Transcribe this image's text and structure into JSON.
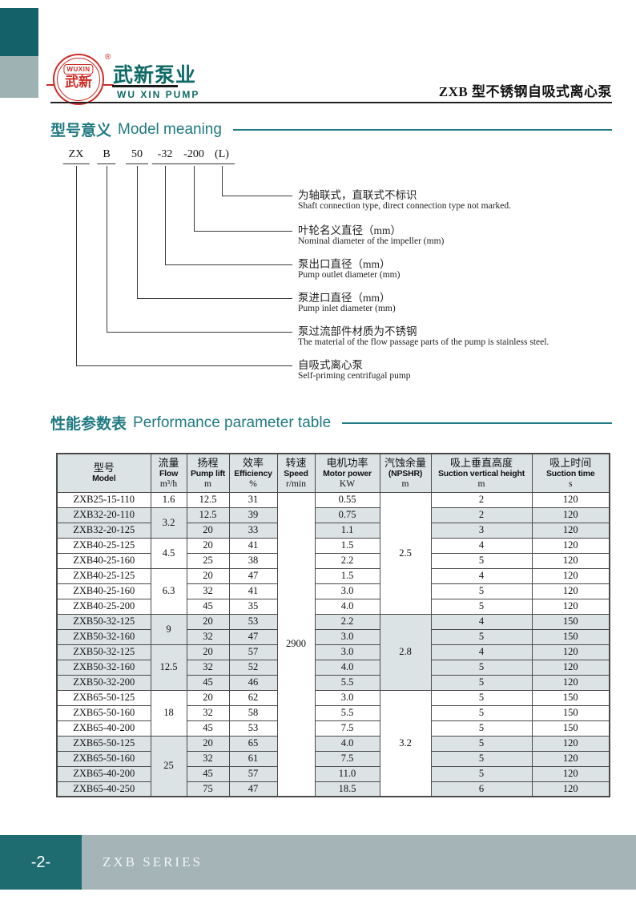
{
  "colors": {
    "accent_teal": "#1f7a82",
    "dark_teal_box": "#14616a",
    "footer_teal": "#1e6b70",
    "footer_band": "#a4b4b7",
    "light_teal_box": "#9eb1b3",
    "logo_red": "#d02c25",
    "company_teal": "#0d6a66",
    "table_stripe": "#dce3e5",
    "table_border": "#4a4a4a"
  },
  "header": {
    "logo": {
      "badge_en": "WUXIN",
      "badge_cn": "武新",
      "registered_mark": "®",
      "company_cn": "武新泵业",
      "company_en": "WU XIN PUMP"
    },
    "doc_title": "ZXB 型不锈钢自吸式离心泵"
  },
  "model_meaning": {
    "title_cn": "型号意义",
    "title_en": "Model meaning",
    "model_parts": [
      "ZX",
      "B",
      "50",
      "-32",
      "-200",
      "(L)"
    ],
    "annotations": [
      {
        "cn": "为轴联式，直联式不标识",
        "en": "Shaft connection type, direct connection type not marked."
      },
      {
        "cn": "叶轮名义直径（mm）",
        "en": "Nominal diameter of the impeller (mm)"
      },
      {
        "cn": "泵出口直径（mm）",
        "en": "Pump outlet diameter (mm)"
      },
      {
        "cn": "泵进口直径（mm）",
        "en": "Pump inlet diameter (mm)"
      },
      {
        "cn": "泵过流部件材质为不锈钢",
        "en": "The material of the flow passage parts of the pump is stainless steel."
      },
      {
        "cn": "自吸式离心泵",
        "en": "Self-priming centrifugal pump"
      }
    ]
  },
  "performance": {
    "title_cn": "性能参数表",
    "title_en": "Performance parameter table",
    "table": {
      "headers": [
        {
          "cn": "型号",
          "en": "Model",
          "unit": ""
        },
        {
          "cn": "流量",
          "en": "Flow",
          "unit": "m³/h"
        },
        {
          "cn": "扬程",
          "en": "Pump lift",
          "unit": "m"
        },
        {
          "cn": "效率",
          "en": "Efficiency",
          "unit": "%"
        },
        {
          "cn": "转速",
          "en": "Speed",
          "unit": "r/min"
        },
        {
          "cn": "电机功率",
          "en": "Motor power",
          "unit": "KW"
        },
        {
          "cn": "汽蚀余量",
          "en": "(NPSHR)",
          "unit": "m"
        },
        {
          "cn": "吸上垂直高度",
          "en": "Suction vertical height",
          "unit": "m"
        },
        {
          "cn": "吸上时间",
          "en": "Suction time",
          "unit": "s"
        }
      ],
      "speed": {
        "value": "2900",
        "span": 20
      },
      "flow_groups": [
        {
          "value": "1.6",
          "span": 1,
          "shaded": false
        },
        {
          "value": "3.2",
          "span": 2,
          "shaded": true
        },
        {
          "value": "4.5",
          "span": 2,
          "shaded": false
        },
        {
          "value": "6.3",
          "span": 3,
          "shaded": false
        },
        {
          "value": "9",
          "span": 2,
          "shaded": true
        },
        {
          "value": "12.5",
          "span": 3,
          "shaded": true
        },
        {
          "value": "18",
          "span": 3,
          "shaded": false
        },
        {
          "value": "25",
          "span": 4,
          "shaded": true
        }
      ],
      "npshr_groups": [
        {
          "value": "2.5",
          "span": 8,
          "shaded": false
        },
        {
          "value": "2.8",
          "span": 5,
          "shaded": true
        },
        {
          "value": "3.2",
          "span": 7,
          "shaded": false
        }
      ],
      "rows": [
        {
          "model": "ZXB25-15-110",
          "lift": "12.5",
          "eff": "31",
          "power": "0.55",
          "height": "2",
          "time": "120",
          "shaded": false
        },
        {
          "model": "ZXB32-20-110",
          "lift": "12.5",
          "eff": "39",
          "power": "0.75",
          "height": "2",
          "time": "120",
          "shaded": true
        },
        {
          "model": "ZXB32-20-125",
          "lift": "20",
          "eff": "33",
          "power": "1.1",
          "height": "3",
          "time": "120",
          "shaded": true
        },
        {
          "model": "ZXB40-25-125",
          "lift": "20",
          "eff": "41",
          "power": "1.5",
          "height": "4",
          "time": "120",
          "shaded": false
        },
        {
          "model": "ZXB40-25-160",
          "lift": "25",
          "eff": "38",
          "power": "2.2",
          "height": "5",
          "time": "120",
          "shaded": false
        },
        {
          "model": "ZXB40-25-125",
          "lift": "20",
          "eff": "47",
          "power": "1.5",
          "height": "4",
          "time": "120",
          "shaded": false
        },
        {
          "model": "ZXB40-25-160",
          "lift": "32",
          "eff": "41",
          "power": "3.0",
          "height": "5",
          "time": "120",
          "shaded": false
        },
        {
          "model": "ZXB40-25-200",
          "lift": "45",
          "eff": "35",
          "power": "4.0",
          "height": "5",
          "time": "120",
          "shaded": false
        },
        {
          "model": "ZXB50-32-125",
          "lift": "20",
          "eff": "53",
          "power": "2.2",
          "height": "4",
          "time": "150",
          "shaded": true
        },
        {
          "model": "ZXB50-32-160",
          "lift": "32",
          "eff": "47",
          "power": "3.0",
          "height": "5",
          "time": "150",
          "shaded": true
        },
        {
          "model": "ZXB50-32-125",
          "lift": "20",
          "eff": "57",
          "power": "3.0",
          "height": "4",
          "time": "120",
          "shaded": true
        },
        {
          "model": "ZXB50-32-160",
          "lift": "32",
          "eff": "52",
          "power": "4.0",
          "height": "5",
          "time": "120",
          "shaded": true
        },
        {
          "model": "ZXB50-32-200",
          "lift": "45",
          "eff": "46",
          "power": "5.5",
          "height": "5",
          "time": "120",
          "shaded": true
        },
        {
          "model": "ZXB65-50-125",
          "lift": "20",
          "eff": "62",
          "power": "3.0",
          "height": "5",
          "time": "150",
          "shaded": false
        },
        {
          "model": "ZXB65-50-160",
          "lift": "32",
          "eff": "58",
          "power": "5.5",
          "height": "5",
          "time": "150",
          "shaded": false
        },
        {
          "model": "ZXB65-40-200",
          "lift": "45",
          "eff": "53",
          "power": "7.5",
          "height": "5",
          "time": "150",
          "shaded": false
        },
        {
          "model": "ZXB65-50-125",
          "lift": "20",
          "eff": "65",
          "power": "4.0",
          "height": "5",
          "time": "120",
          "shaded": true
        },
        {
          "model": "ZXB65-50-160",
          "lift": "32",
          "eff": "61",
          "power": "7.5",
          "height": "5",
          "time": "120",
          "shaded": true
        },
        {
          "model": "ZXB65-40-200",
          "lift": "45",
          "eff": "57",
          "power": "11.0",
          "height": "5",
          "time": "120",
          "shaded": true
        },
        {
          "model": "ZXB65-40-250",
          "lift": "75",
          "eff": "47",
          "power": "18.5",
          "height": "6",
          "time": "120",
          "shaded": true
        }
      ]
    }
  },
  "footer": {
    "page_number": "-2-",
    "series": "ZXB  SERIES"
  }
}
